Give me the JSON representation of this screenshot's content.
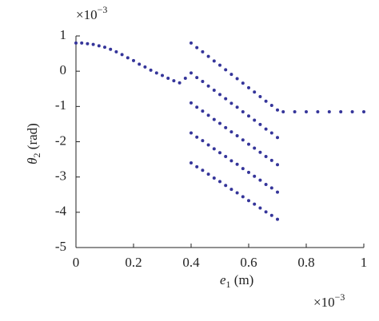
{
  "chart_data": {
    "type": "scatter",
    "ylabel_symbol": "θ",
    "ylabel_sub": "2",
    "ylabel_unit": " (rad)",
    "xlabel_symbol": "e",
    "xlabel_sub": "1",
    "xlabel_unit": " (m)",
    "y_multiplier": "×10",
    "y_multiplier_exp": "−3",
    "x_multiplier": "×10",
    "x_multiplier_exp": "−3",
    "color": "#35359a",
    "xlim": [
      0,
      1
    ],
    "ylim": [
      -5,
      1
    ],
    "xticks": [
      0,
      0.2,
      0.4,
      0.6,
      0.8,
      1
    ],
    "yticks": [
      1,
      0,
      -1,
      -2,
      -3,
      -4,
      -5
    ],
    "x": [
      0,
      0.02,
      0.04,
      0.06,
      0.08,
      0.1,
      0.12,
      0.14,
      0.16,
      0.18,
      0.2,
      0.22,
      0.24,
      0.26,
      0.28,
      0.3,
      0.32,
      0.34,
      0.36,
      0.38,
      0.4,
      0.4,
      0.4,
      0.4,
      0.4,
      0.42,
      0.42,
      0.42,
      0.42,
      0.42,
      0.44,
      0.44,
      0.44,
      0.44,
      0.44,
      0.46,
      0.46,
      0.46,
      0.46,
      0.46,
      0.48,
      0.48,
      0.48,
      0.48,
      0.48,
      0.5,
      0.5,
      0.5,
      0.5,
      0.5,
      0.52,
      0.52,
      0.52,
      0.52,
      0.52,
      0.54,
      0.54,
      0.54,
      0.54,
      0.54,
      0.56,
      0.56,
      0.56,
      0.56,
      0.56,
      0.58,
      0.58,
      0.58,
      0.58,
      0.58,
      0.6,
      0.6,
      0.6,
      0.6,
      0.6,
      0.62,
      0.62,
      0.62,
      0.62,
      0.62,
      0.64,
      0.64,
      0.64,
      0.64,
      0.64,
      0.66,
      0.66,
      0.66,
      0.66,
      0.66,
      0.68,
      0.68,
      0.68,
      0.68,
      0.68,
      0.7,
      0.7,
      0.7,
      0.7,
      0.7,
      0.72,
      0.76,
      0.8,
      0.84,
      0.88,
      0.92,
      0.96,
      1
    ],
    "y": [
      0.8,
      0.8,
      0.78,
      0.76,
      0.72,
      0.68,
      0.62,
      0.55,
      0.47,
      0.38,
      0.3,
      0.2,
      0.12,
      0.03,
      -0.05,
      -0.12,
      -0.2,
      -0.27,
      -0.33,
      -0.2,
      0.8,
      -0.05,
      -0.9,
      -1.75,
      -2.6,
      0.67,
      -0.18,
      -1.02,
      -1.87,
      -2.71,
      0.55,
      -0.29,
      -1.13,
      -1.97,
      -2.81,
      0.42,
      -0.42,
      -1.25,
      -2.09,
      -2.92,
      0.29,
      -0.54,
      -1.37,
      -2.2,
      -3.03,
      0.17,
      -0.66,
      -1.48,
      -2.31,
      -3.13,
      0.04,
      -0.78,
      -1.6,
      -2.42,
      -3.24,
      -0.09,
      -0.91,
      -1.72,
      -2.54,
      -3.35,
      -0.21,
      -1.02,
      -1.83,
      -2.64,
      -3.45,
      -0.34,
      -1.15,
      -1.95,
      -2.76,
      -3.56,
      -0.47,
      -1.27,
      -2.07,
      -2.87,
      -3.67,
      -0.59,
      -1.39,
      -2.18,
      -2.98,
      -3.77,
      -0.72,
      -1.51,
      -2.3,
      -3.09,
      -3.88,
      -0.85,
      -1.64,
      -2.42,
      -3.21,
      -3.99,
      -0.97,
      -1.75,
      -2.53,
      -3.31,
      -4.09,
      -1.1,
      -1.88,
      -2.65,
      -3.43,
      -4.2,
      -1.15,
      -1.15,
      -1.15,
      -1.15,
      -1.15,
      -1.15,
      -1.15,
      -1.15
    ]
  }
}
